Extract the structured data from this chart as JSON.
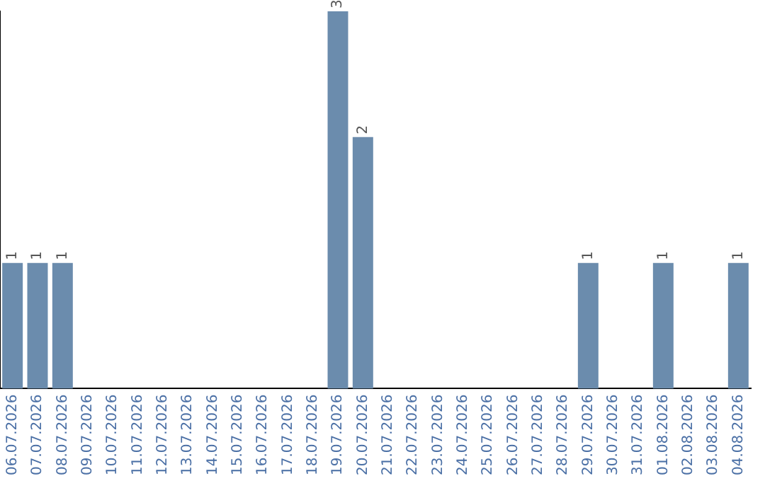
{
  "chart_data": {
    "type": "bar",
    "categories": [
      "06.07.2026",
      "07.07.2026",
      "08.07.2026",
      "09.07.2026",
      "10.07.2026",
      "11.07.2026",
      "12.07.2026",
      "13.07.2026",
      "14.07.2026",
      "15.07.2026",
      "16.07.2026",
      "17.07.2026",
      "18.07.2026",
      "19.07.2026",
      "20.07.2026",
      "21.07.2026",
      "22.07.2026",
      "23.07.2026",
      "24.07.2026",
      "25.07.2026",
      "26.07.2026",
      "27.07.2026",
      "28.07.2026",
      "29.07.2026",
      "30.07.2026",
      "31.07.2026",
      "01.08.2026",
      "02.08.2026",
      "03.08.2026",
      "04.08.2026"
    ],
    "values": [
      1,
      1,
      1,
      0,
      0,
      0,
      0,
      0,
      0,
      0,
      0,
      0,
      0,
      3,
      2,
      0,
      0,
      0,
      0,
      0,
      0,
      0,
      0,
      1,
      0,
      0,
      1,
      0,
      0,
      1
    ],
    "color": "#6b8cad",
    "value_labels": [
      "1",
      "1",
      "1",
      null,
      null,
      null,
      null,
      null,
      null,
      null,
      null,
      null,
      null,
      "3",
      "2",
      null,
      null,
      null,
      null,
      null,
      null,
      null,
      null,
      "1",
      null,
      null,
      "1",
      null,
      null,
      "1"
    ],
    "tick_labels": "x",
    "grid": false,
    "legend": false
  }
}
